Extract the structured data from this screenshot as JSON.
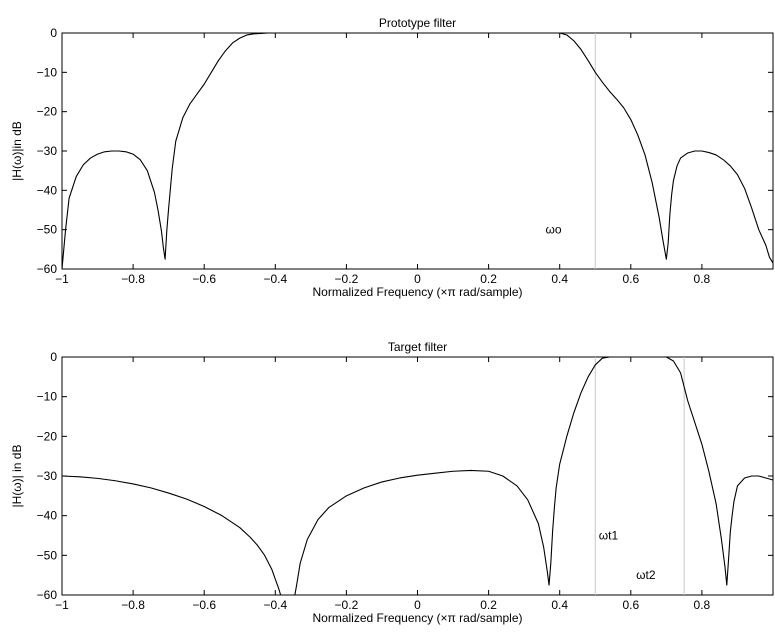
{
  "chart_data": [
    {
      "type": "line",
      "title": "Prototype filter",
      "xlabel": "Normalized Frequency  (×π rad/sample)",
      "ylabel": "|H(ω)|in dB",
      "xlim": [
        -1,
        1
      ],
      "ylim": [
        -60,
        0
      ],
      "xticks": [
        -1,
        -0.8,
        -0.6,
        -0.4,
        -0.2,
        0,
        0.2,
        0.4,
        0.6,
        0.8
      ],
      "xtick_labels": [
        "−1",
        "−0.8",
        "−0.6",
        "−0.4",
        "−0.2",
        "0",
        "0.2",
        "0.4",
        "0.6",
        "0.8"
      ],
      "yticks": [
        0,
        -10,
        -20,
        -30,
        -40,
        -50,
        -60
      ],
      "ytick_labels": [
        "0",
        "−10",
        "−20",
        "−30",
        "−40",
        "−50",
        "−60"
      ],
      "grid": false,
      "series": [
        {
          "x": [
            -1.0,
            -0.99,
            -0.98,
            -0.96,
            -0.94,
            -0.92,
            -0.9,
            -0.88,
            -0.86,
            -0.84,
            -0.82,
            -0.8,
            -0.78,
            -0.76,
            -0.74,
            -0.73,
            -0.72,
            -0.715,
            -0.71,
            -0.705,
            -0.7,
            -0.69,
            -0.68,
            -0.66,
            -0.64,
            -0.62,
            -0.6,
            -0.58,
            -0.56,
            -0.54,
            -0.52,
            -0.5,
            -0.48,
            -0.46,
            -0.44,
            -0.42,
            -0.4,
            -0.38,
            -0.36,
            0.36,
            0.38,
            0.4,
            0.42,
            0.44,
            0.46,
            0.48,
            0.5,
            0.52,
            0.54,
            0.56,
            0.58,
            0.6,
            0.62,
            0.64,
            0.66,
            0.68,
            0.69,
            0.7,
            0.705,
            0.71,
            0.715,
            0.72,
            0.73,
            0.74,
            0.76,
            0.78,
            0.8,
            0.82,
            0.84,
            0.86,
            0.88,
            0.9,
            0.92,
            0.94,
            0.96,
            0.98,
            0.99,
            1.0
          ],
          "y": [
            -60,
            -50,
            -42,
            -36.5,
            -33.5,
            -31.8,
            -30.8,
            -30.2,
            -30.0,
            -30.0,
            -30.2,
            -30.8,
            -32.2,
            -35.0,
            -40.5,
            -45.0,
            -50.5,
            -54.5,
            -57.5,
            -50.0,
            -44.5,
            -34.5,
            -27.5,
            -21.5,
            -18.0,
            -15.5,
            -13.0,
            -10.0,
            -7.0,
            -4.5,
            -2.5,
            -1.3,
            -0.5,
            -0.2,
            -0.1,
            0.0,
            0.0,
            0.0,
            0.0,
            0.0,
            0.0,
            0.0,
            -0.5,
            -2.0,
            -4.2,
            -7.0,
            -10.0,
            -12.5,
            -14.8,
            -16.8,
            -19.0,
            -22.0,
            -26.0,
            -31.0,
            -38.0,
            -47.0,
            -52.5,
            -57.5,
            -53.5,
            -46.0,
            -41.0,
            -37.5,
            -33.8,
            -31.8,
            -30.5,
            -30.0,
            -30.0,
            -30.4,
            -31.0,
            -32.2,
            -33.8,
            -36.0,
            -39.5,
            -44.5,
            -50.0,
            -54.0,
            -57.0,
            -58.5
          ]
        }
      ],
      "annotations": [
        {
          "text": "ωo",
          "x": 0.36,
          "y": -50
        }
      ],
      "markers": [
        {
          "x": 0.5
        }
      ]
    },
    {
      "type": "line",
      "title": "Target filter",
      "xlabel": "Normalized Frequency  (×π rad/sample)",
      "ylabel": "|H(ω)| in dB",
      "xlim": [
        -1,
        1
      ],
      "ylim": [
        -60,
        0
      ],
      "xticks": [
        -1,
        -0.8,
        -0.6,
        -0.4,
        -0.2,
        0,
        0.2,
        0.4,
        0.6,
        0.8
      ],
      "xtick_labels": [
        "−1",
        "−0.8",
        "−0.6",
        "−0.4",
        "−0.2",
        "0",
        "0.2",
        "0.4",
        "0.6",
        "0.8"
      ],
      "yticks": [
        0,
        -10,
        -20,
        -30,
        -40,
        -50,
        -60
      ],
      "ytick_labels": [
        "0",
        "−10",
        "−20",
        "−30",
        "−40",
        "−50",
        "−60"
      ],
      "grid": false,
      "series": [
        {
          "x": [
            -1.0,
            -0.95,
            -0.9,
            -0.85,
            -0.8,
            -0.75,
            -0.7,
            -0.65,
            -0.6,
            -0.55,
            -0.5,
            -0.47,
            -0.45,
            -0.43,
            -0.41,
            -0.4,
            -0.39,
            -0.385,
            -0.38,
            -0.375,
            -0.37,
            -0.365,
            -0.36,
            -0.355,
            -0.35,
            -0.345,
            -0.34,
            -0.33,
            -0.31,
            -0.28,
            -0.25,
            -0.2,
            -0.15,
            -0.1,
            -0.05,
            0.0,
            0.05,
            0.1,
            0.15,
            0.2,
            0.24,
            0.28,
            0.31,
            0.34,
            0.355,
            0.365,
            0.37,
            0.375,
            0.38,
            0.385,
            0.39,
            0.4,
            0.42,
            0.44,
            0.46,
            0.48,
            0.5,
            0.52,
            0.54,
            0.56,
            0.58,
            0.6,
            0.7,
            0.72,
            0.74,
            0.76,
            0.78,
            0.8,
            0.82,
            0.84,
            0.855,
            0.865,
            0.87,
            0.875,
            0.88,
            0.885,
            0.89,
            0.9,
            0.92,
            0.94,
            0.96,
            0.98,
            1.0
          ],
          "y": [
            -30.0,
            -30.2,
            -30.6,
            -31.2,
            -32.0,
            -33.0,
            -34.3,
            -35.8,
            -37.7,
            -40.0,
            -43.0,
            -45.5,
            -47.5,
            -50.0,
            -53.5,
            -56.0,
            -58.5,
            -60,
            -60,
            -60,
            -60,
            -60,
            -60,
            -60,
            -60,
            -60,
            -57.5,
            -52.0,
            -46.0,
            -41.0,
            -38.0,
            -35.0,
            -33.0,
            -31.5,
            -30.5,
            -29.8,
            -29.3,
            -28.8,
            -28.6,
            -28.8,
            -30.0,
            -32.5,
            -36.0,
            -42.0,
            -48.0,
            -54.0,
            -57.5,
            -52.0,
            -44.0,
            -38.0,
            -33.0,
            -27.0,
            -20.0,
            -14.0,
            -9.0,
            -5.0,
            -2.0,
            -0.3,
            0.0,
            0.0,
            0.0,
            0.0,
            0.0,
            -1.0,
            -4.0,
            -11.0,
            -16.5,
            -22.0,
            -29.0,
            -37.0,
            -46.0,
            -53.0,
            -57.5,
            -51.0,
            -44.0,
            -40.0,
            -36.5,
            -32.5,
            -30.5,
            -30.0,
            -30.0,
            -30.5,
            -31.0
          ]
        }
      ],
      "annotations": [
        {
          "text": "ωt1",
          "x": 0.51,
          "y": -45
        },
        {
          "text": "ωt2",
          "x": 0.615,
          "y": -55
        }
      ],
      "markers": [
        {
          "x": 0.5
        },
        {
          "x": 0.75
        }
      ]
    }
  ]
}
